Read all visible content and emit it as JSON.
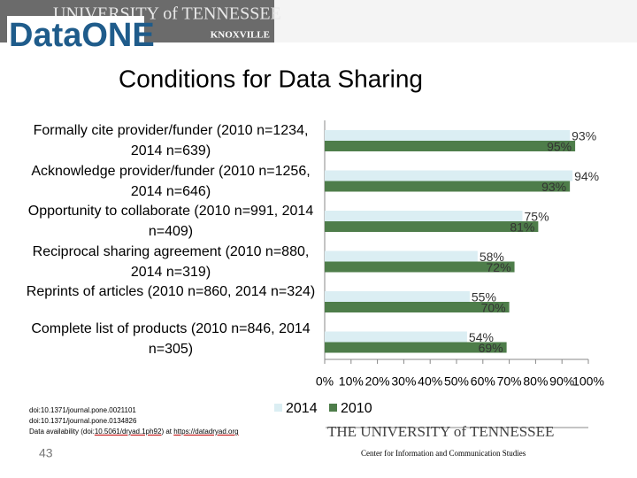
{
  "header": {
    "logo": "DataONE",
    "banner": "UNIVERSITY of TENNESSEE",
    "city": "KNOXVILLE"
  },
  "chart_data": {
    "type": "hbar",
    "title": "Conditions for Data Sharing",
    "categories": [
      "Formally cite provider/funder (2010 n=1234, 2014 n=639)",
      "Acknowledge provider/funder (2010 n=1256, 2014 n=646)",
      "Opportunity to collaborate (2010 n=991, 2014 n=409)",
      "Reciprocal sharing agreement (2010 n=880, 2014 n=319)",
      "Reprints of articles (2010 n=860, 2014 n=324)",
      "Complete list of products (2010 n=846, 2014 n=305)"
    ],
    "series": [
      {
        "name": "2014",
        "color": "#dbeef3",
        "values": [
          93,
          94,
          75,
          58,
          55,
          54
        ],
        "value_labels": [
          "93%",
          "94%",
          "75%",
          "58%",
          "55%",
          "54%"
        ]
      },
      {
        "name": "2010",
        "color": "#4e7d4a",
        "values": [
          95,
          93,
          81,
          72,
          70,
          69
        ],
        "value_labels": [
          "95%",
          "93%",
          "81%",
          "72%",
          "70%",
          "69%"
        ]
      }
    ],
    "xlim": [
      0,
      100
    ],
    "xticks": [
      {
        "value": 0,
        "label": "0%"
      },
      {
        "value": 10,
        "label": "10%"
      },
      {
        "value": 20,
        "label": "20%"
      },
      {
        "value": 30,
        "label": "30%"
      },
      {
        "value": 40,
        "label": "40%"
      },
      {
        "value": 50,
        "label": "50%"
      },
      {
        "value": 60,
        "label": "60%"
      },
      {
        "value": 70,
        "label": "70%"
      },
      {
        "value": 80,
        "label": "80%"
      },
      {
        "value": 90,
        "label": "90%"
      },
      {
        "value": 100,
        "label": "100%"
      }
    ],
    "legend": "bottom"
  },
  "footer": {
    "doi1": "doi:10.1371/journal.pone.0021101",
    "doi2": "doi:10.1371/journal.pone.0134826",
    "avail_prefix": "Data availability (doi:",
    "avail_doi": "10.5061/dryad.1ph92",
    "avail_mid": ") at",
    "avail_url": "https://datadryad.org",
    "page": "43",
    "university": "THE UNIVERSITY of TENNESSEE",
    "center": "Center for Information and Communication Studies"
  }
}
